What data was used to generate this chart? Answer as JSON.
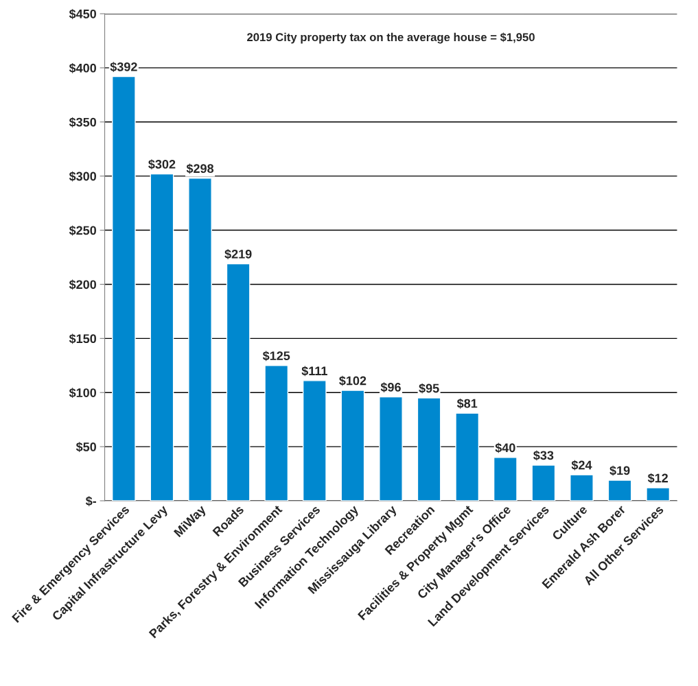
{
  "chart_data": {
    "type": "bar",
    "categories": [
      "Fire & Emergency Services",
      "Capital Infrastructure Levy",
      "MiWay",
      "Roads",
      "Parks, Forestry & Environment",
      "Business Services",
      "Information Technology",
      "Mississauga Library",
      "Recreation",
      "Facilities & Property Mgmt",
      "City Manager's Office",
      "Land Development Services",
      "Culture",
      "Emerald Ash Borer",
      "All Other Services"
    ],
    "values": [
      392,
      302,
      298,
      219,
      125,
      111,
      102,
      96,
      95,
      81,
      40,
      33,
      24,
      19,
      12
    ],
    "value_labels": [
      "$392",
      "$302",
      "$298",
      "$219",
      "$125",
      "$111",
      "$102",
      "$96",
      "$95",
      "$81",
      "$40",
      "$33",
      "$24",
      "$19",
      "$12"
    ],
    "color": "#0088cf",
    "ylim": [
      0,
      450
    ],
    "yticks": [
      {
        "value": 0,
        "label": "$-"
      },
      {
        "value": 50,
        "label": "$50"
      },
      {
        "value": 100,
        "label": "$100"
      },
      {
        "value": 150,
        "label": "$150"
      },
      {
        "value": 200,
        "label": "$200"
      },
      {
        "value": 250,
        "label": "$250"
      },
      {
        "value": 300,
        "label": "$300"
      },
      {
        "value": 350,
        "label": "$350"
      },
      {
        "value": 400,
        "label": "$400"
      },
      {
        "value": 450,
        "label": "$450"
      }
    ],
    "grid": "y",
    "annotations": [
      "2019 City property tax on the average house = $1,950"
    ]
  }
}
